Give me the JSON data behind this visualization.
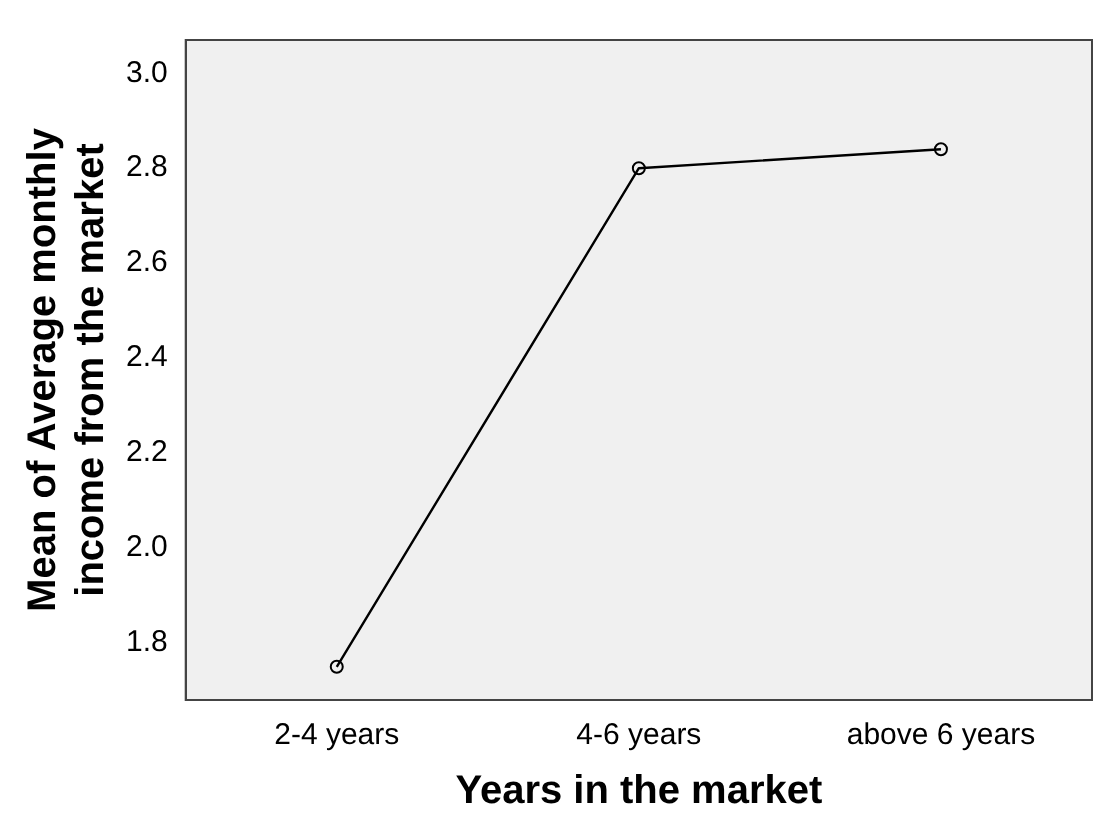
{
  "chart_data": {
    "type": "line",
    "xlabel": "Years in the market",
    "ylabel": "Mean of Average monthly income from the market",
    "categories": [
      "2-4 years",
      "4-6 years",
      "above 6 years"
    ],
    "series": [
      {
        "color": "#000000",
        "values": [
          1.75,
          2.8,
          2.84
        ]
      }
    ],
    "ylim": [
      1.68,
      3.07
    ],
    "yticks": [
      1.8,
      {
        "value": 2,
        "label": "2.0"
      },
      2.2,
      2.4,
      2.6,
      2.8,
      {
        "value": 3,
        "label": "3.0"
      }
    ],
    "grid": false,
    "legend": false,
    "marker": "circle",
    "line_style": "solid"
  }
}
